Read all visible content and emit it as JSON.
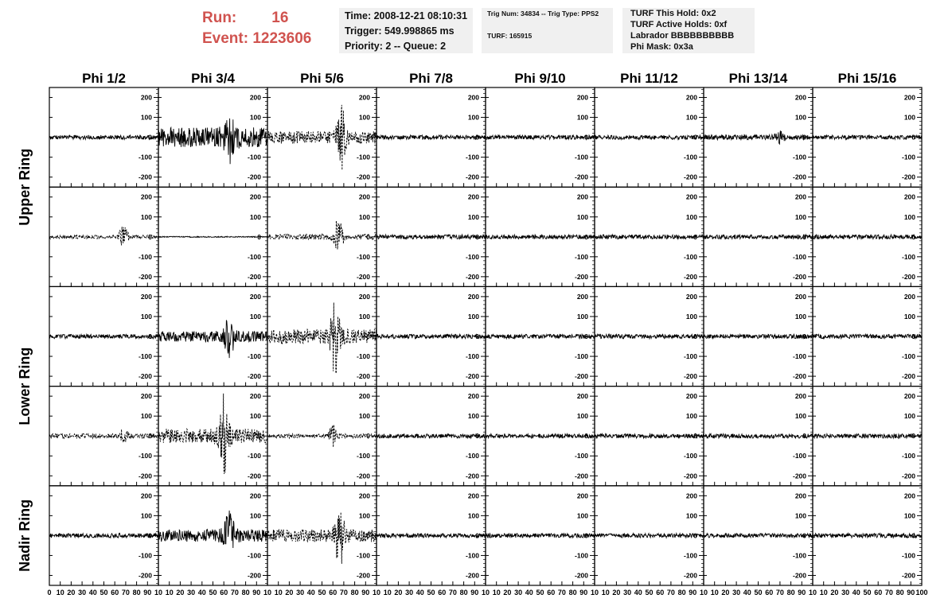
{
  "header": {
    "run_label": "Run:",
    "run_value": "16",
    "event_label": "Event:",
    "event_value": "1223606"
  },
  "info": {
    "time": "Time: 2008-12-21 08:10:31",
    "trigger": "Trigger: 549.998865 ms",
    "priority": "Priority: 2 -- Queue: 2",
    "trig_num": "Trig Num: 34834 -- Trig Type: PPS2",
    "turf": "TURF: 165915",
    "turf_hold": "TURF This Hold: 0x2",
    "turf_active": "TURF Active Holds: 0xf",
    "labrador": "Labrador BBBBBBBBBB",
    "phi_mask": "Phi Mask: 0x3a"
  },
  "chart_data": {
    "type": "line",
    "columns": [
      "Phi 1/2",
      "Phi 3/4",
      "Phi 5/6",
      "Phi 7/8",
      "Phi 9/10",
      "Phi 11/12",
      "Phi 13/14",
      "Phi 15/16"
    ],
    "ring_labels": [
      {
        "label": "Upper Ring",
        "rows": [
          0,
          1
        ]
      },
      {
        "label": "Lower Ring",
        "rows": [
          2,
          3
        ]
      },
      {
        "label": "Nadir Ring",
        "rows": [
          4,
          4
        ]
      }
    ],
    "rows": 5,
    "ylim": [
      -250,
      250
    ],
    "yticks": [
      -200,
      -100,
      0,
      100,
      200
    ],
    "xlim": [
      0,
      100
    ],
    "xticks": [
      0,
      10,
      20,
      30,
      40,
      50,
      60,
      70,
      80,
      90,
      100
    ],
    "xtick_labels_first": [
      "0",
      "10",
      "20",
      "30",
      "40",
      "50",
      "60",
      "70",
      "80",
      "90",
      "10"
    ],
    "xtick_labels_mid": [
      "10",
      "20",
      "30",
      "40",
      "50",
      "60",
      "70",
      "80",
      "90",
      "10"
    ],
    "xtick_labels_last": [
      "10",
      "20",
      "30",
      "40",
      "50",
      "60",
      "70",
      "80",
      "90",
      "100"
    ],
    "noise_amplitude": 12,
    "panels": [
      {
        "row": 0,
        "col": 1,
        "style": "solid",
        "amp": 55,
        "pulse_x": 65,
        "pulse_amp": 110
      },
      {
        "row": 0,
        "col": 2,
        "style": "dashed",
        "amp": 35,
        "pulse_x": 68,
        "pulse_amp": 150
      },
      {
        "row": 0,
        "col": 6,
        "style": "solid",
        "amp": 14,
        "pulse_x": 70,
        "pulse_amp": 25
      },
      {
        "row": 1,
        "col": 0,
        "style": "dashed",
        "amp": 10,
        "pulse_x": 68,
        "pulse_amp": 55
      },
      {
        "row": 1,
        "col": 1,
        "style": "solid",
        "amp": 3,
        "pulse_x": 50,
        "pulse_amp": 0
      },
      {
        "row": 1,
        "col": 2,
        "style": "dashed",
        "amp": 15,
        "pulse_x": 65,
        "pulse_amp": 95
      },
      {
        "row": 2,
        "col": 1,
        "style": "solid",
        "amp": 30,
        "pulse_x": 65,
        "pulse_amp": 120
      },
      {
        "row": 2,
        "col": 2,
        "style": "dashed",
        "amp": 40,
        "pulse_x": 62,
        "pulse_amp": 200
      },
      {
        "row": 3,
        "col": 0,
        "style": "dashed",
        "amp": 14,
        "pulse_x": 68,
        "pulse_amp": 30
      },
      {
        "row": 3,
        "col": 1,
        "style": "dashed",
        "amp": 40,
        "pulse_x": 60,
        "pulse_amp": 210
      },
      {
        "row": 3,
        "col": 2,
        "style": "dashed",
        "amp": 12,
        "pulse_x": 60,
        "pulse_amp": 55
      },
      {
        "row": 4,
        "col": 1,
        "style": "solid",
        "amp": 35,
        "pulse_x": 65,
        "pulse_amp": 120
      },
      {
        "row": 4,
        "col": 2,
        "style": "dashed",
        "amp": 35,
        "pulse_x": 66,
        "pulse_amp": 170
      }
    ]
  }
}
